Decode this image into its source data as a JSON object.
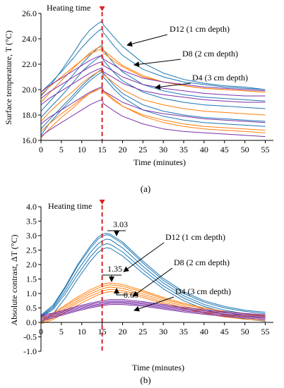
{
  "colors": {
    "d12": "#1f77b4",
    "d8": "#ff7f0e",
    "d4": "#7b2fa8",
    "heating_marker": "#e02020",
    "axis": "#000000"
  },
  "chart_data": [
    {
      "type": "line",
      "panel_label": "(a)",
      "xlabel": "Time  (minutes)",
      "ylabel": "Surface temperature,  T (°C)",
      "xlim": [
        0,
        57
      ],
      "ylim": [
        16,
        26
      ],
      "xticks": [
        0,
        5,
        10,
        15,
        20,
        25,
        30,
        35,
        40,
        45,
        50,
        55
      ],
      "yticks": [
        "16.0",
        "18.0",
        "20.0",
        "22.0",
        "24.0",
        "26.0"
      ],
      "grid": false,
      "heating_time": 15,
      "x": [
        0,
        2,
        5,
        8,
        10,
        12,
        14,
        15,
        15.3,
        18,
        20,
        25,
        30,
        35,
        40,
        45,
        50,
        55
      ],
      "series": [
        {
          "group": "d12",
          "values": [
            19.5,
            20.2,
            21.5,
            22.9,
            23.9,
            24.7,
            25.2,
            25.4,
            25.1,
            24.1,
            23.4,
            22.1,
            21.3,
            20.8,
            20.5,
            20.3,
            20.2,
            20.0
          ]
        },
        {
          "group": "d12",
          "values": [
            19.8,
            20.4,
            21.4,
            22.5,
            23.3,
            24.0,
            24.6,
            24.8,
            24.5,
            23.4,
            22.7,
            21.6,
            21.0,
            20.6,
            20.4,
            20.2,
            20.1,
            20.0
          ]
        },
        {
          "group": "d12",
          "values": [
            18.3,
            19.0,
            20.1,
            21.2,
            22.0,
            22.7,
            23.3,
            23.5,
            23.1,
            22.0,
            21.4,
            20.4,
            19.9,
            19.6,
            19.4,
            19.3,
            19.2,
            19.1
          ]
        },
        {
          "group": "d12",
          "values": [
            17.8,
            18.5,
            19.5,
            20.6,
            21.4,
            22.0,
            22.5,
            22.7,
            22.3,
            21.3,
            20.7,
            19.8,
            19.3,
            19.0,
            18.8,
            18.7,
            18.6,
            18.5
          ]
        },
        {
          "group": "d12",
          "values": [
            16.4,
            17.3,
            18.4,
            19.4,
            20.1,
            20.7,
            21.2,
            21.4,
            21.0,
            20.0,
            19.4,
            18.4,
            17.9,
            17.6,
            17.4,
            17.3,
            17.2,
            17.1
          ]
        },
        {
          "group": "d12",
          "values": [
            16.9,
            17.6,
            18.6,
            19.6,
            20.3,
            20.9,
            21.4,
            21.6,
            21.3,
            20.3,
            19.7,
            18.8,
            18.3,
            18.0,
            17.8,
            17.7,
            17.6,
            17.5
          ]
        },
        {
          "group": "d8",
          "values": [
            19.0,
            19.7,
            20.7,
            21.7,
            22.3,
            22.9,
            23.3,
            23.4,
            23.1,
            22.4,
            21.9,
            21.1,
            20.6,
            20.3,
            20.1,
            20.0,
            19.9,
            19.8
          ]
        },
        {
          "group": "d8",
          "values": [
            19.6,
            20.2,
            21.0,
            21.8,
            22.3,
            22.8,
            23.1,
            23.2,
            22.9,
            22.2,
            21.8,
            21.0,
            20.6,
            20.3,
            20.1,
            20.0,
            19.9,
            19.8
          ]
        },
        {
          "group": "d8",
          "values": [
            17.5,
            18.2,
            19.1,
            19.9,
            20.5,
            21.0,
            21.4,
            21.5,
            21.2,
            20.5,
            20.0,
            19.2,
            18.8,
            18.5,
            18.3,
            18.2,
            18.1,
            18.0
          ]
        },
        {
          "group": "d8",
          "values": [
            16.2,
            16.9,
            17.8,
            18.6,
            19.2,
            19.7,
            20.1,
            20.2,
            19.9,
            19.2,
            18.7,
            17.9,
            17.4,
            17.1,
            16.9,
            16.8,
            16.7,
            16.6
          ]
        },
        {
          "group": "d8",
          "values": [
            16.7,
            17.3,
            18.1,
            18.8,
            19.3,
            19.7,
            20.0,
            20.1,
            19.8,
            19.1,
            18.7,
            18.0,
            17.6,
            17.3,
            17.1,
            17.0,
            16.9,
            16.8
          ]
        },
        {
          "group": "d4",
          "values": [
            19.8,
            20.3,
            20.9,
            21.5,
            21.9,
            22.3,
            22.6,
            22.7,
            22.4,
            21.9,
            21.5,
            20.9,
            20.6,
            20.4,
            20.2,
            20.1,
            20.0,
            19.9
          ]
        },
        {
          "group": "d4",
          "values": [
            19.3,
            19.8,
            20.4,
            21.0,
            21.4,
            21.8,
            22.1,
            22.2,
            21.9,
            21.4,
            21.0,
            20.4,
            20.1,
            19.9,
            19.7,
            19.6,
            19.5,
            19.5
          ]
        },
        {
          "group": "d4",
          "values": [
            18.8,
            19.3,
            19.9,
            20.5,
            20.9,
            21.3,
            21.6,
            21.7,
            21.4,
            20.9,
            20.5,
            19.9,
            19.6,
            19.4,
            19.2,
            19.1,
            19.0,
            19.0
          ]
        },
        {
          "group": "d4",
          "values": [
            17.3,
            17.8,
            18.4,
            19.0,
            19.4,
            19.8,
            20.1,
            20.2,
            19.9,
            19.4,
            19.0,
            18.4,
            18.1,
            17.9,
            17.7,
            17.6,
            17.5,
            17.4
          ]
        },
        {
          "group": "d4",
          "values": [
            16.3,
            16.8,
            17.4,
            18.0,
            18.4,
            18.8,
            19.1,
            19.2,
            18.9,
            18.3,
            17.9,
            17.3,
            16.9,
            16.7,
            16.6,
            16.5,
            16.4,
            16.3
          ]
        }
      ],
      "annotations": [
        {
          "text": "Heating  time"
        },
        {
          "text": "D12 (1 cm depth)"
        },
        {
          "text": "D8 (2 cm depth)"
        },
        {
          "text": "D4 (3 cm depth)"
        }
      ]
    },
    {
      "type": "line",
      "panel_label": "(b)",
      "xlabel": "Time  (minutes)",
      "ylabel": "Absolute contrast,  ΔT  (°C)",
      "xlim": [
        0,
        57
      ],
      "ylim": [
        -1.0,
        4.0
      ],
      "xticks": [
        0,
        5,
        10,
        15,
        20,
        25,
        30,
        35,
        40,
        45,
        50,
        55
      ],
      "yticks": [
        "-1.0",
        "-0.5",
        "0.0",
        "0.5",
        "1.0",
        "1.5",
        "2.0",
        "2.5",
        "3.0",
        "3.5",
        "4.0"
      ],
      "grid": false,
      "heating_time": 15,
      "x": [
        0,
        3,
        6,
        9,
        12,
        14,
        15,
        16,
        17,
        20,
        25,
        30,
        35,
        40,
        45,
        50,
        55
      ],
      "series": [
        {
          "group": "d12",
          "values": [
            0.22,
            0.55,
            1.2,
            1.95,
            2.55,
            2.88,
            2.98,
            3.03,
            3.0,
            2.72,
            2.05,
            1.45,
            1.0,
            0.7,
            0.5,
            0.38,
            0.3
          ]
        },
        {
          "group": "d12",
          "values": [
            0.2,
            0.5,
            1.1,
            1.8,
            2.4,
            2.72,
            2.82,
            2.88,
            2.86,
            2.58,
            1.94,
            1.36,
            0.92,
            0.62,
            0.42,
            0.3,
            0.22
          ]
        },
        {
          "group": "d12",
          "values": [
            0.18,
            0.45,
            1.0,
            1.65,
            2.25,
            2.56,
            2.66,
            2.72,
            2.7,
            2.44,
            1.82,
            1.26,
            0.84,
            0.55,
            0.35,
            0.22,
            0.14
          ]
        },
        {
          "group": "d12",
          "values": [
            0.0,
            0.3,
            0.85,
            1.5,
            2.1,
            2.42,
            2.52,
            2.58,
            2.56,
            2.3,
            1.7,
            1.16,
            0.75,
            0.46,
            0.26,
            0.12,
            0.04
          ]
        },
        {
          "group": "d12",
          "values": [
            0.25,
            0.6,
            1.25,
            2.0,
            2.62,
            2.95,
            3.04,
            3.08,
            3.05,
            2.78,
            2.12,
            1.52,
            1.06,
            0.75,
            0.55,
            0.42,
            0.35
          ]
        },
        {
          "group": "d8",
          "values": [
            0.1,
            0.28,
            0.55,
            0.82,
            1.05,
            1.18,
            1.24,
            1.28,
            1.3,
            1.25,
            1.05,
            0.82,
            0.62,
            0.46,
            0.34,
            0.26,
            0.2
          ]
        },
        {
          "group": "d8",
          "values": [
            0.05,
            0.22,
            0.48,
            0.75,
            0.98,
            1.1,
            1.16,
            1.2,
            1.22,
            1.18,
            0.98,
            0.76,
            0.56,
            0.4,
            0.28,
            0.2,
            0.14
          ]
        },
        {
          "group": "d8",
          "values": [
            0.0,
            0.15,
            0.42,
            0.68,
            0.9,
            1.02,
            1.08,
            1.12,
            1.14,
            1.1,
            0.92,
            0.7,
            0.5,
            0.35,
            0.23,
            0.15,
            0.1
          ]
        },
        {
          "group": "d8",
          "values": [
            -0.05,
            0.1,
            0.35,
            0.6,
            0.82,
            0.95,
            1.0,
            1.04,
            1.06,
            1.03,
            0.86,
            0.65,
            0.46,
            0.31,
            0.19,
            0.11,
            0.06
          ]
        },
        {
          "group": "d8",
          "values": [
            0.15,
            0.32,
            0.6,
            0.88,
            1.12,
            1.25,
            1.31,
            1.35,
            1.36,
            1.31,
            1.1,
            0.86,
            0.66,
            0.5,
            0.38,
            0.3,
            0.24
          ]
        },
        {
          "group": "d4",
          "values": [
            0.2,
            0.28,
            0.4,
            0.52,
            0.62,
            0.68,
            0.7,
            0.72,
            0.74,
            0.74,
            0.68,
            0.58,
            0.48,
            0.4,
            0.33,
            0.27,
            0.22
          ]
        },
        {
          "group": "d4",
          "values": [
            0.15,
            0.24,
            0.36,
            0.48,
            0.58,
            0.63,
            0.66,
            0.68,
            0.7,
            0.7,
            0.64,
            0.54,
            0.44,
            0.36,
            0.29,
            0.23,
            0.18
          ]
        },
        {
          "group": "d4",
          "values": [
            0.1,
            0.2,
            0.32,
            0.44,
            0.54,
            0.59,
            0.62,
            0.64,
            0.66,
            0.66,
            0.6,
            0.5,
            0.4,
            0.32,
            0.25,
            0.19,
            0.14
          ]
        },
        {
          "group": "d4",
          "values": [
            0.25,
            0.32,
            0.44,
            0.56,
            0.66,
            0.72,
            0.75,
            0.77,
            0.79,
            0.79,
            0.72,
            0.62,
            0.52,
            0.44,
            0.37,
            0.31,
            0.26
          ]
        },
        {
          "group": "d4",
          "values": [
            0.05,
            0.16,
            0.28,
            0.4,
            0.5,
            0.55,
            0.58,
            0.6,
            0.62,
            0.62,
            0.56,
            0.46,
            0.36,
            0.28,
            0.21,
            0.15,
            0.1
          ]
        }
      ],
      "annotations": [
        {
          "text": "Heating  time"
        },
        {
          "text": "D12 (1 cm depth)"
        },
        {
          "text": "D8 (2 cm depth)"
        },
        {
          "text": "D4 (3 cm depth)"
        },
        {
          "text": "3.03"
        },
        {
          "text": "1.35"
        },
        {
          "text": "0.69"
        }
      ]
    }
  ]
}
